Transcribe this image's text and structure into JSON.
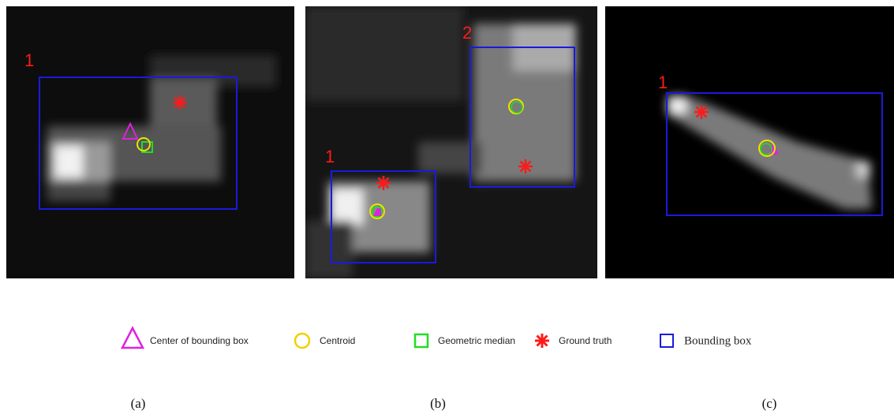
{
  "panels": [
    {
      "caption": "(a)",
      "objects": [
        {
          "label": "1"
        }
      ]
    },
    {
      "caption": "(b)",
      "objects": [
        {
          "label": "1"
        },
        {
          "label": "2"
        }
      ]
    },
    {
      "caption": "(c)",
      "objects": [
        {
          "label": "1"
        }
      ]
    }
  ],
  "legend": [
    {
      "label": "Center of bounding box"
    },
    {
      "label": "Centroid"
    },
    {
      "label": "Geometric median"
    },
    {
      "label": "Ground truth"
    },
    {
      "label": "Bounding box"
    }
  ]
}
